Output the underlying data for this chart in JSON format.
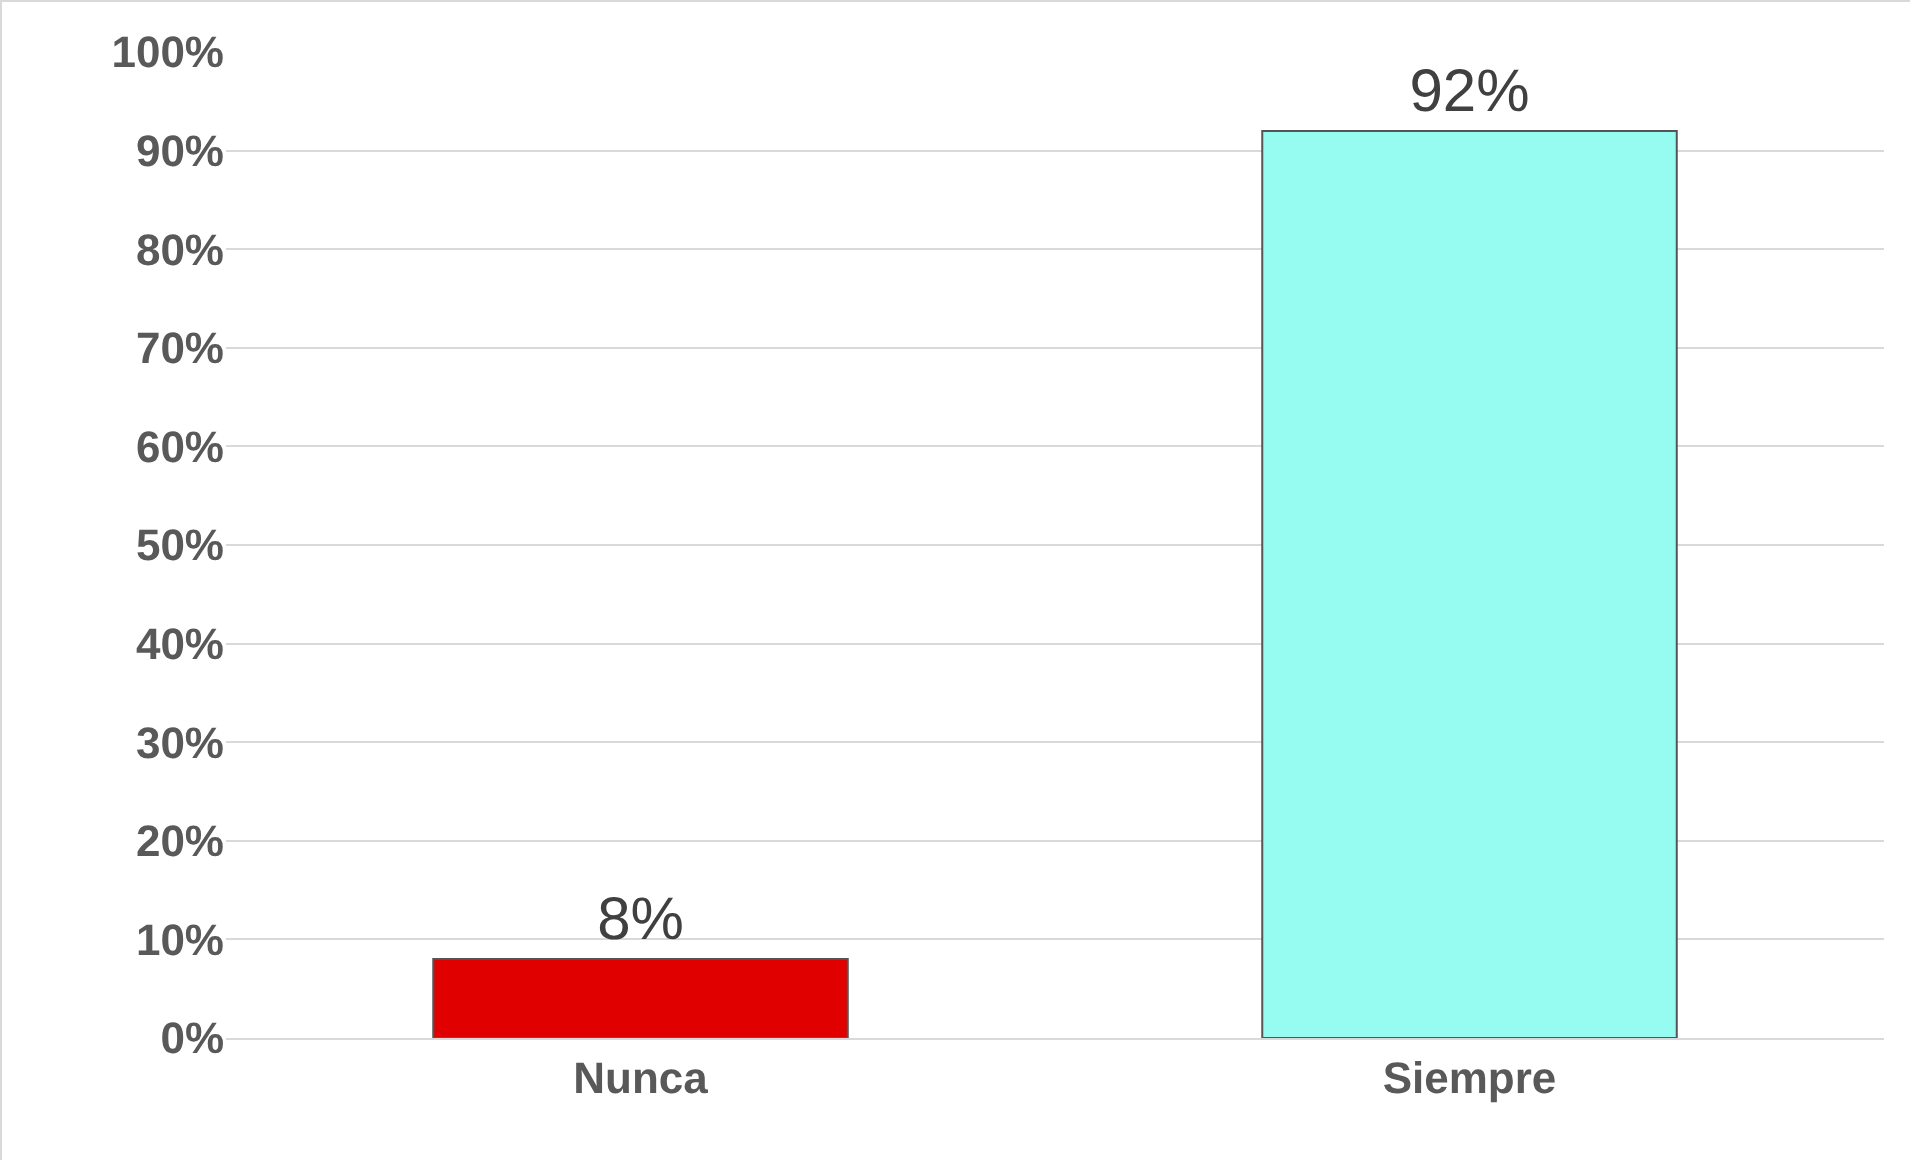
{
  "chart_data": {
    "type": "bar",
    "categories": [
      "Nunca",
      "Siempre"
    ],
    "values": [
      8,
      92
    ],
    "colors": [
      "#e00000",
      "#96fbf0"
    ],
    "value_labels": [
      "8%",
      "92%"
    ],
    "ylim": [
      0,
      100
    ],
    "yticks": [
      {
        "value": 0,
        "label": "0%"
      },
      {
        "value": 10,
        "label": "10%"
      },
      {
        "value": 20,
        "label": "20%"
      },
      {
        "value": 30,
        "label": "30%"
      },
      {
        "value": 40,
        "label": "40%"
      },
      {
        "value": 50,
        "label": "50%"
      },
      {
        "value": 60,
        "label": "60%"
      },
      {
        "value": 70,
        "label": "70%"
      },
      {
        "value": 80,
        "label": "80%"
      },
      {
        "value": 90,
        "label": "90%"
      },
      {
        "value": 100,
        "label": "100%"
      }
    ],
    "grid": "y"
  }
}
